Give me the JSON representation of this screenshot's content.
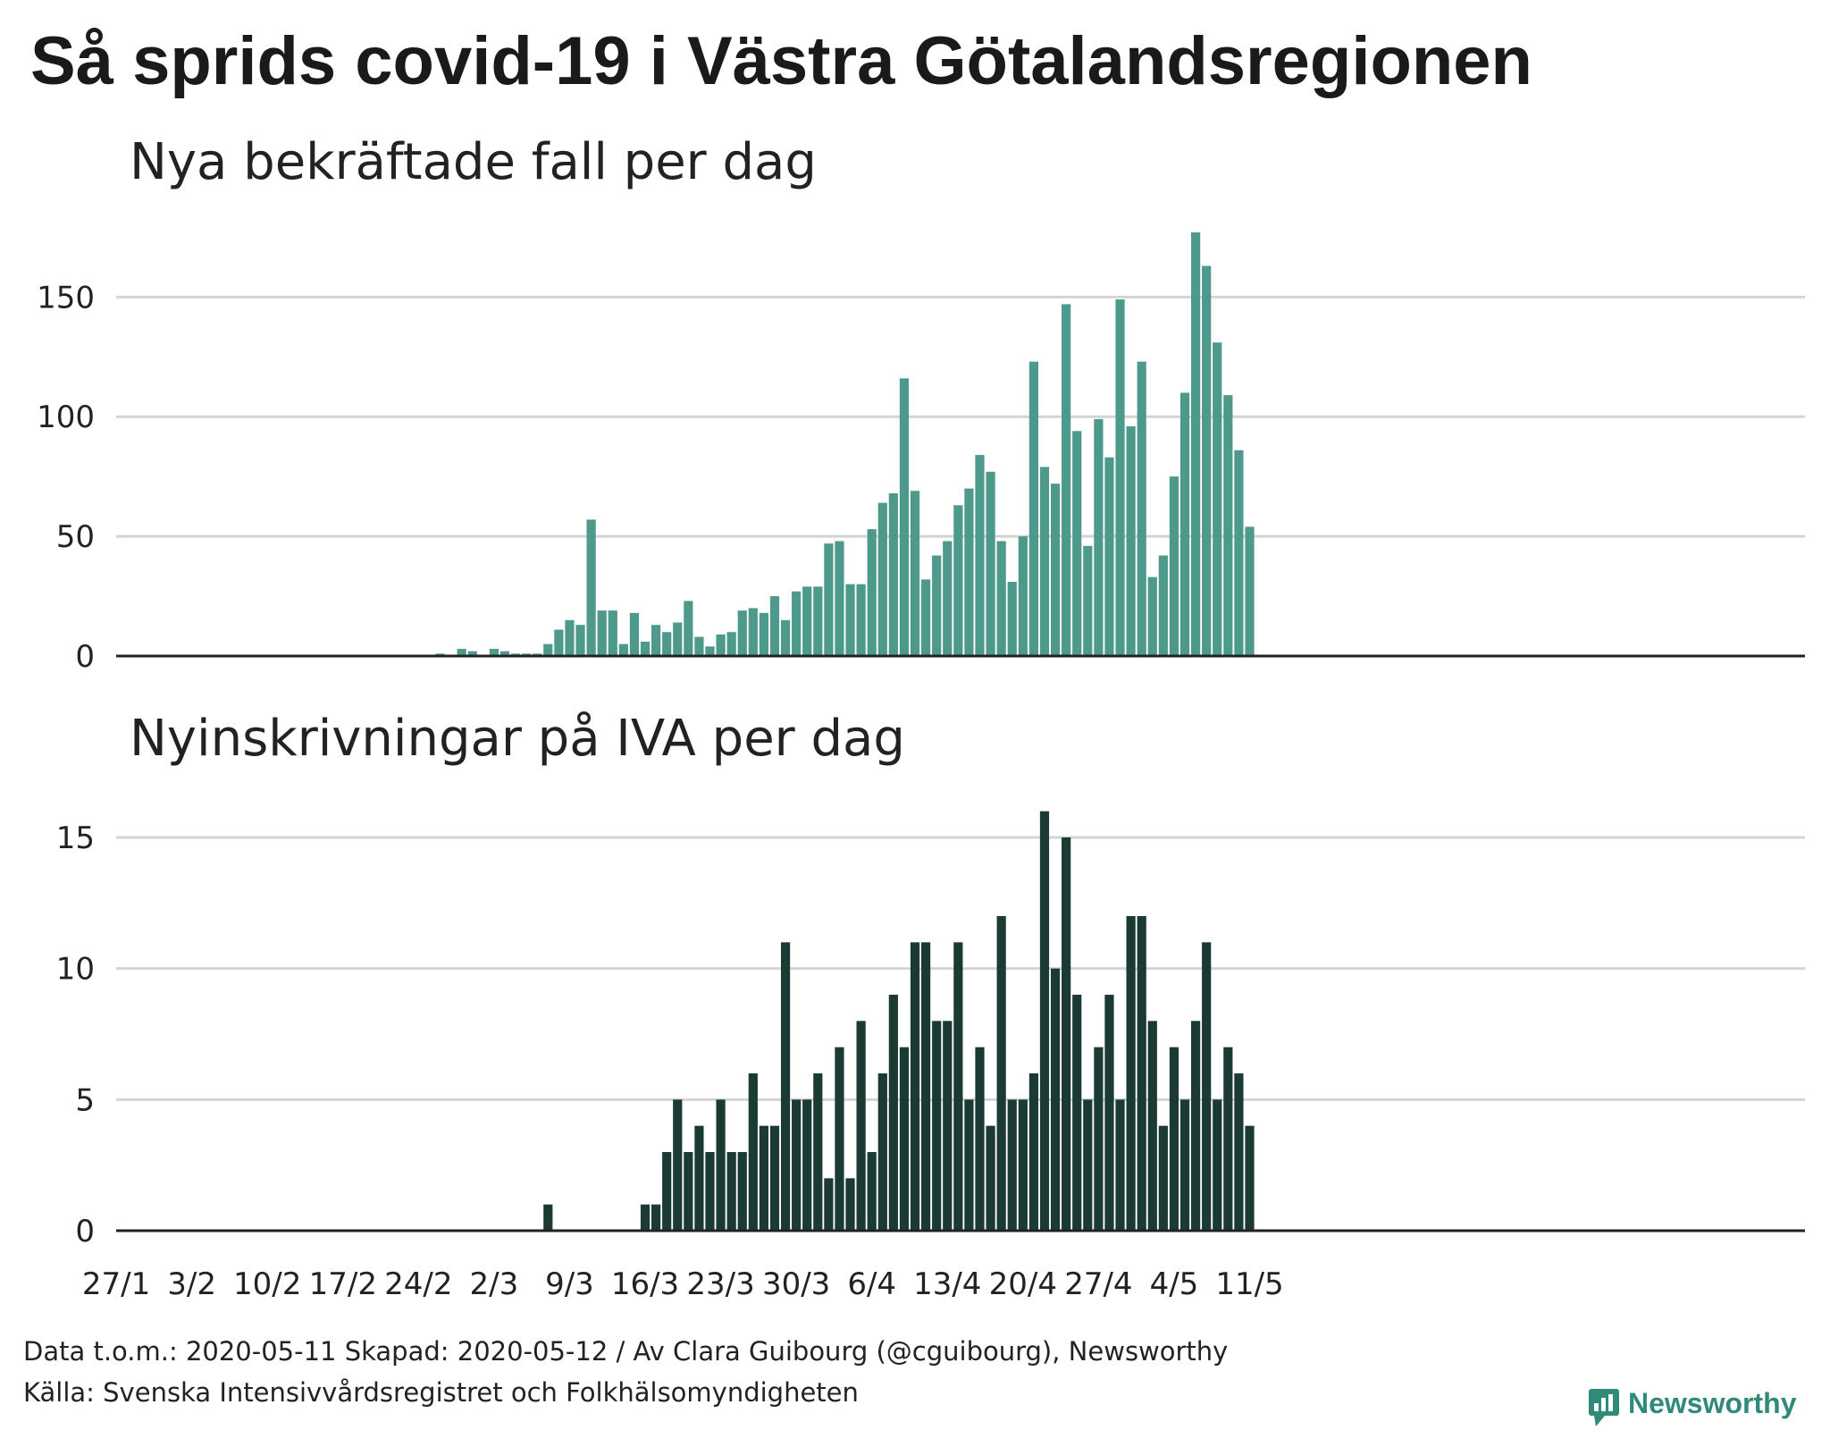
{
  "title": "Så sprids covid-19 i Västra Götalandsregionen",
  "footer": {
    "line1": "Data t.o.m.: 2020-05-11 Skapad: 2020-05-12 / Av Clara Guibourg (@cguibourg), Newsworthy",
    "line2": "Källa: Svenska Intensivvårdsregistret och Folkhälsomyndigheten"
  },
  "brand": {
    "name": "Newsworthy",
    "icon": "newsworthy-logo-icon",
    "color": "#2f8a79"
  },
  "colors": {
    "cases": "#4d9a8c",
    "iva": "#1b3a33",
    "grid": "#d4d4d4",
    "axis": "#222222"
  },
  "chart_data": [
    {
      "type": "bar",
      "title": "Nya bekräftade fall per dag",
      "x_start": "2020-01-27",
      "x_end": "2020-05-11",
      "x_ticks": [
        "27/1",
        "3/2",
        "10/2",
        "17/2",
        "24/2",
        "2/3",
        "9/3",
        "16/3",
        "23/3",
        "30/3",
        "6/4",
        "13/4",
        "20/4",
        "27/4",
        "4/5",
        "11/5"
      ],
      "y_ticks": [
        0,
        50,
        100,
        150
      ],
      "ylim": [
        0,
        180
      ],
      "grid": true,
      "values": [
        0,
        0,
        0,
        0,
        0,
        0,
        0,
        0,
        0,
        0,
        0,
        0,
        0,
        0,
        0,
        0,
        0,
        0,
        0,
        0,
        0,
        0,
        0,
        0,
        0,
        0,
        0,
        0,
        0,
        0,
        1,
        0,
        3,
        2,
        0,
        3,
        2,
        1,
        1,
        1,
        5,
        11,
        15,
        13,
        57,
        19,
        19,
        5,
        18,
        6,
        13,
        10,
        14,
        23,
        8,
        4,
        9,
        10,
        19,
        20,
        18,
        25,
        15,
        27,
        29,
        29,
        47,
        48,
        30,
        30,
        53,
        64,
        68,
        116,
        69,
        32,
        42,
        48,
        63,
        70,
        84,
        77,
        48,
        31,
        50,
        123,
        79,
        72,
        147,
        94,
        46,
        99,
        83,
        149,
        96,
        123,
        33,
        42,
        75,
        110,
        177,
        163,
        131,
        109,
        86,
        54
      ]
    },
    {
      "type": "bar",
      "title": "Nyinskrivningar på IVA per dag",
      "x_start": "2020-01-27",
      "x_end": "2020-05-11",
      "x_ticks": [
        "27/1",
        "3/2",
        "10/2",
        "17/2",
        "24/2",
        "2/3",
        "9/3",
        "16/3",
        "23/3",
        "30/3",
        "6/4",
        "13/4",
        "20/4",
        "27/4",
        "4/5",
        "11/5"
      ],
      "y_ticks": [
        0,
        5,
        10,
        15
      ],
      "ylim": [
        0,
        16.5
      ],
      "grid": true,
      "values": [
        0,
        0,
        0,
        0,
        0,
        0,
        0,
        0,
        0,
        0,
        0,
        0,
        0,
        0,
        0,
        0,
        0,
        0,
        0,
        0,
        0,
        0,
        0,
        0,
        0,
        0,
        0,
        0,
        0,
        0,
        0,
        0,
        0,
        0,
        0,
        0,
        0,
        0,
        0,
        0,
        1,
        0,
        0,
        0,
        0,
        0,
        0,
        0,
        0,
        1,
        1,
        3,
        5,
        3,
        4,
        3,
        5,
        3,
        3,
        6,
        4,
        4,
        11,
        5,
        5,
        6,
        2,
        7,
        2,
        8,
        3,
        6,
        9,
        7,
        11,
        11,
        8,
        8,
        11,
        5,
        7,
        4,
        12,
        5,
        5,
        6,
        16,
        10,
        15,
        9,
        5,
        7,
        9,
        5,
        12,
        12,
        8,
        4,
        7,
        5,
        8,
        11,
        5,
        7,
        6,
        4
      ]
    }
  ]
}
